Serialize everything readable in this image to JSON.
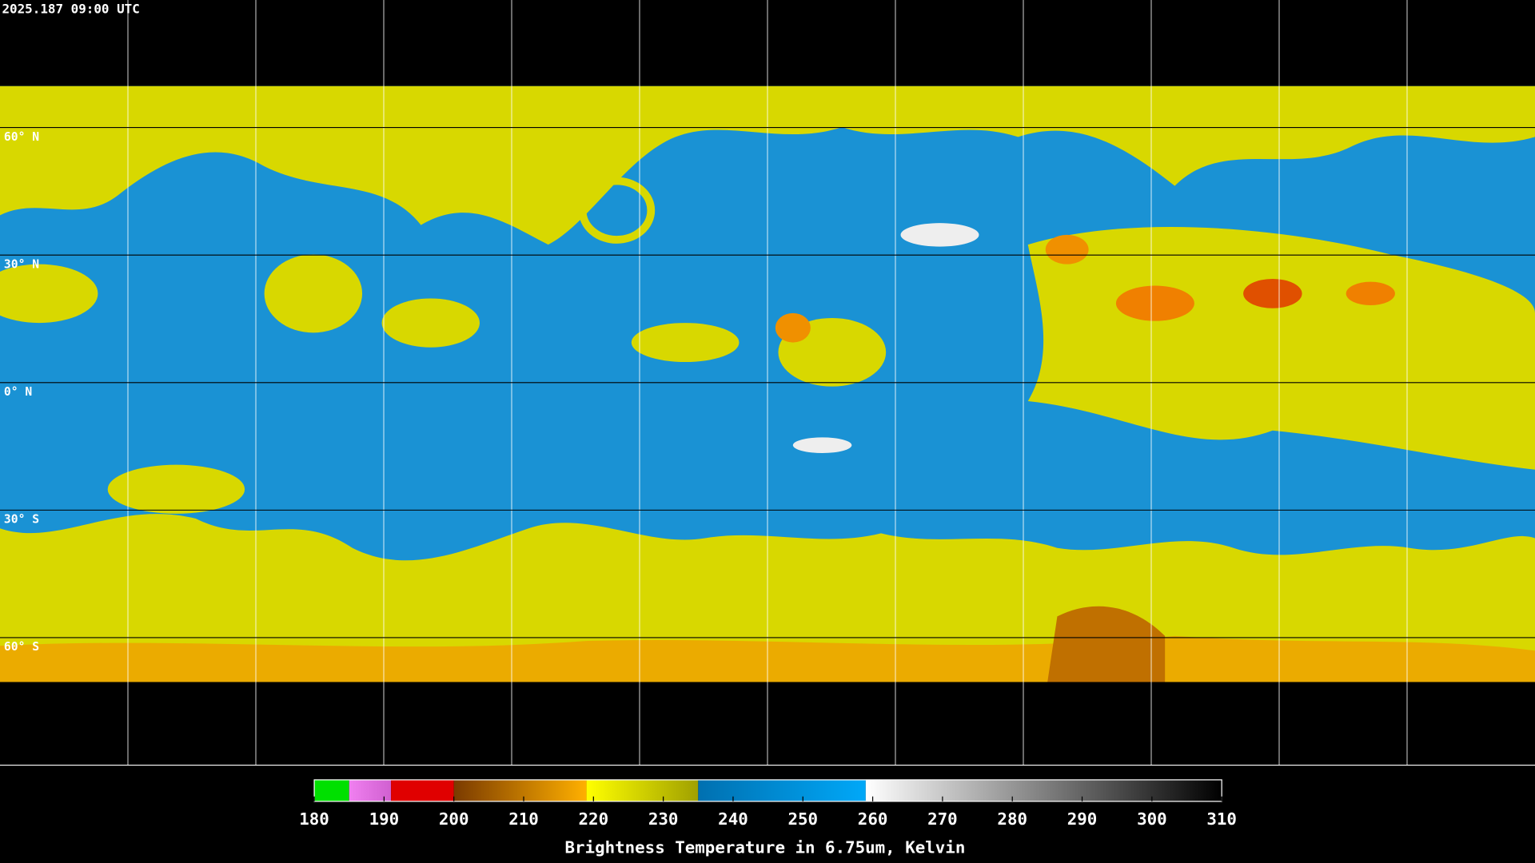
{
  "header": {
    "timestamp": "2025.187 09:00 UTC"
  },
  "latitude_labels": [
    "60° N",
    "30° N",
    "0° N",
    "30° S",
    "60° S"
  ],
  "colorbar": {
    "title": "Brightness Temperature in 6.75um, Kelvin",
    "range": [
      180,
      310
    ],
    "ticks": [
      180,
      190,
      200,
      210,
      220,
      230,
      240,
      250,
      260,
      270,
      280,
      290,
      300,
      310
    ],
    "segments": [
      {
        "from": 180,
        "to": 185,
        "colors": [
          "#00e000",
          "#00e000"
        ]
      },
      {
        "from": 185,
        "to": 191,
        "colors": [
          "#f080f0",
          "#d060d0"
        ]
      },
      {
        "from": 191,
        "to": 200,
        "colors": [
          "#e00000",
          "#e00000"
        ]
      },
      {
        "from": 200,
        "to": 219,
        "colors": [
          "#7a3a00",
          "#ffb000"
        ]
      },
      {
        "from": 219,
        "to": 235,
        "colors": [
          "#ffff00",
          "#a0a000"
        ]
      },
      {
        "from": 235,
        "to": 259,
        "colors": [
          "#0070b0",
          "#00a8f8"
        ]
      },
      {
        "from": 259,
        "to": 310,
        "colors": [
          "#ffffff",
          "#000000"
        ]
      }
    ]
  }
}
